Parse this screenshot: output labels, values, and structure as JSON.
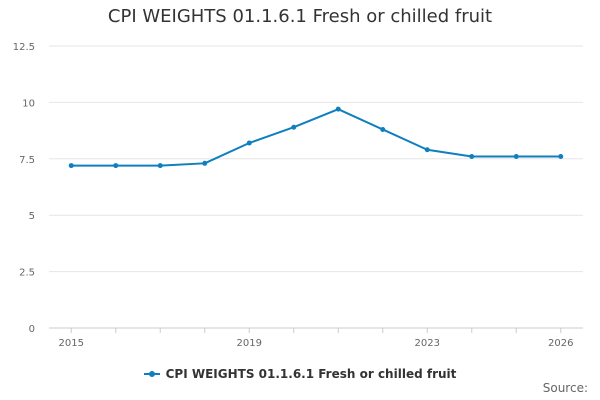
{
  "chart_data": {
    "type": "line",
    "title": "CPI WEIGHTS 01.1.6.1 Fresh or chilled fruit",
    "x": [
      2015,
      2016,
      2017,
      2018,
      2019,
      2020,
      2021,
      2022,
      2023,
      2024,
      2025,
      2026
    ],
    "series": [
      {
        "name": "CPI WEIGHTS 01.1.6.1 Fresh or chilled fruit",
        "values": [
          7.2,
          7.2,
          7.2,
          7.3,
          8.2,
          8.9,
          9.7,
          8.8,
          7.9,
          7.6,
          7.6,
          7.6
        ],
        "color": "#0f7fbf"
      }
    ],
    "xticks": [
      "2015",
      "2019",
      "2023",
      "2026"
    ],
    "xtick_values": [
      2015,
      2019,
      2023,
      2026
    ],
    "yticks": [
      "0",
      "2.5",
      "5",
      "7.5",
      "10",
      "12.5"
    ],
    "ytick_values": [
      0,
      2.5,
      5,
      7.5,
      10,
      12.5
    ],
    "xlim": [
      2014.5,
      2026.5
    ],
    "ylim": [
      0,
      12.5
    ],
    "grid": true,
    "legend_position": "bottom",
    "xlabel": "",
    "ylabel": ""
  },
  "source_label": "Source:"
}
